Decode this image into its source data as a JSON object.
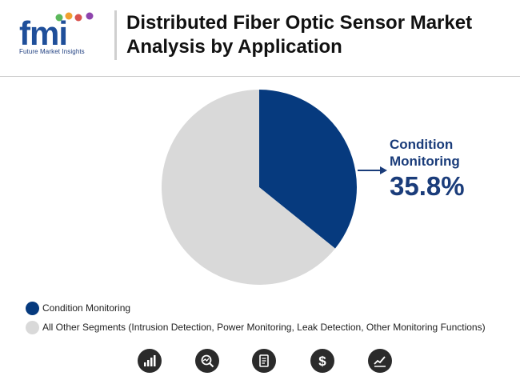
{
  "header": {
    "logo_text": "fmi",
    "logo_tagline": "Future Market Insights",
    "title_line1": "Distributed Fiber Optic Sensor Market",
    "title_line2": "Analysis by Application"
  },
  "colors": {
    "condition_monitoring": "#063a7e",
    "other_segments": "#d9d9d9",
    "accent_text": "#1a3c7a"
  },
  "chart_data": {
    "type": "pie",
    "slices": [
      {
        "label": "Condition Monitoring",
        "value": 35.8,
        "value_label": "35.8%",
        "color": "#063a7e"
      },
      {
        "label": "All Other Segments (Intrusion Detection, Power Monitoring, Leak Detection, Other Monitoring Functions)",
        "value": 64.2,
        "color": "#d9d9d9"
      }
    ],
    "callout": {
      "label_line1": "Condition",
      "label_line2": "Monitoring",
      "value": "35.8%"
    },
    "legend_placement": "bottom-left"
  },
  "footer_icons": [
    "bar-chart-icon",
    "magnifier-chart-icon",
    "report-document-icon",
    "dollar-icon",
    "line-graph-icon"
  ]
}
